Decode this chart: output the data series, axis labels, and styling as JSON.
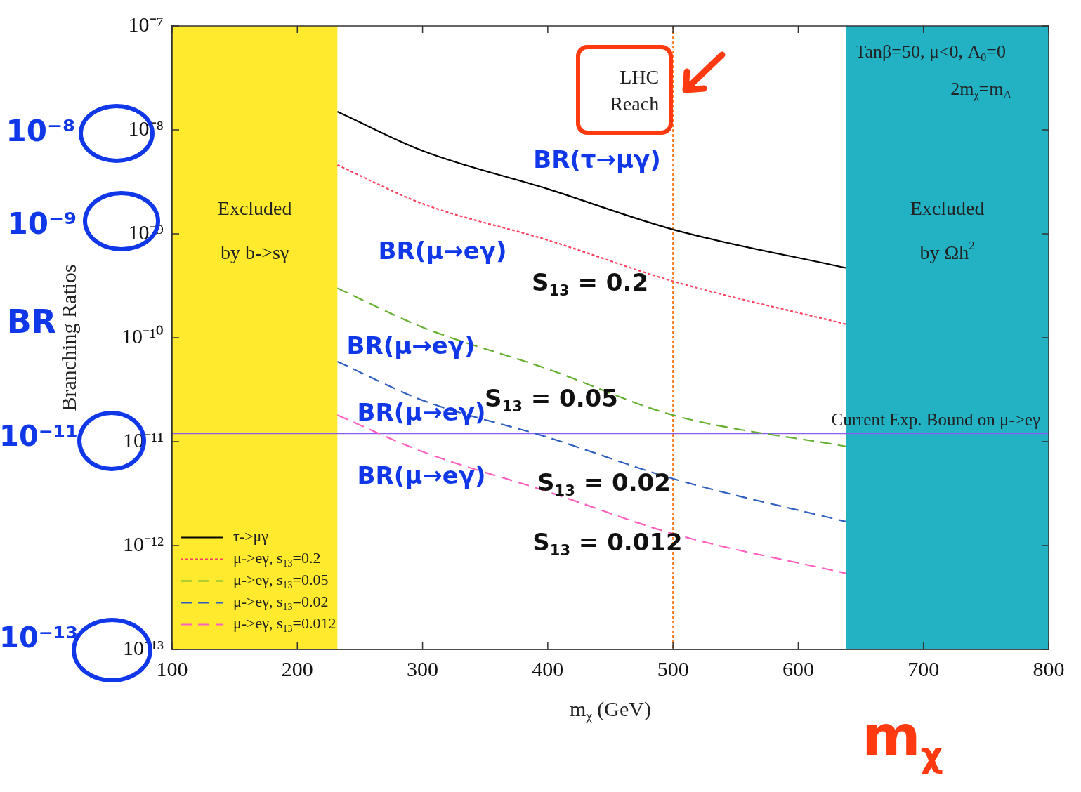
{
  "chart_data": {
    "type": "line",
    "xlabel": "m$_{χ}$ (GeV)",
    "ylabel": "Branching Ratios",
    "xlim": [
      100,
      800
    ],
    "xticks": [
      100,
      200,
      300,
      400,
      500,
      600,
      700,
      800
    ],
    "ylim": [
      1e-13,
      1e-07
    ],
    "yticks": [
      {
        "value": 1e-13,
        "label": "10⁻¹³"
      },
      {
        "value": 1e-12,
        "label": "10⁻¹²"
      },
      {
        "value": 1e-11,
        "label": "10⁻¹¹"
      },
      {
        "value": 1e-10,
        "label": "10⁻¹⁰"
      },
      {
        "value": 1e-09,
        "label": "10⁻⁹"
      },
      {
        "value": 1e-08,
        "label": "10⁻⁸"
      },
      {
        "value": 1e-07,
        "label": "10⁻⁷"
      }
    ],
    "log": "y",
    "legend": "bottom left",
    "marker": "none",
    "series": [
      {
        "name": "τ->μγ",
        "color": "#000000",
        "line_style": "solid",
        "x": [
          232,
          300,
          400,
          500,
          638
        ],
        "values": [
          1.5e-08,
          6.3e-09,
          2.7e-09,
          1.1e-09,
          4.7e-10
        ]
      },
      {
        "name": "μ->eγ, s$_{13}$=0.2",
        "color": "#ff4060",
        "line_style": "dotted",
        "x": [
          232,
          300,
          400,
          500,
          638
        ],
        "values": [
          4.6e-09,
          1.95e-09,
          8.7e-10,
          3.5e-10,
          1.35e-10
        ]
      },
      {
        "name": "μ->eγ, s$_{13}$=0.05",
        "color": "#66b030",
        "line_style": "dashed",
        "x": [
          232,
          300,
          400,
          500,
          638
        ],
        "values": [
          3e-10,
          1.26e-10,
          5e-11,
          1.8e-11,
          9e-12
        ]
      },
      {
        "name": "μ->eγ, s$_{13}$=0.02",
        "color": "#2f5fc0",
        "line_style": "dashed",
        "x": [
          232,
          300,
          400,
          500,
          638
        ],
        "values": [
          5.9e-11,
          2.5e-11,
          1.1e-11,
          4.4e-12,
          1.7e-12
        ]
      },
      {
        "name": "μ->eγ, s$_{13}$=0.012",
        "color": "#ff60c0",
        "line_style": "dashed",
        "x": [
          232,
          300,
          400,
          500,
          638
        ],
        "values": [
          1.8e-11,
          8e-12,
          3.3e-12,
          1.3e-12,
          5.4e-13
        ]
      }
    ],
    "bands": [
      {
        "axis": "x",
        "from": 100,
        "to": 232,
        "label": "Excluded by b->sγ",
        "color": "#ffea2e"
      },
      {
        "axis": "x",
        "from": 638,
        "to": 800,
        "label": "Excluded by Ωh$^{2}$",
        "color": "#22b2c4"
      }
    ],
    "ref_lines": [
      {
        "axis": "x",
        "value": 500,
        "label": "LHC Reach",
        "color": "#ff7a1a",
        "line_style": "dotted"
      },
      {
        "axis": "y",
        "value": 1.2e-11,
        "label": "Current Exp. Bound on μ->eγ",
        "color": "#8a5cf0",
        "line_style": "solid"
      }
    ],
    "annotations": [
      "Tanβ=50, μ<0, A$_{0}$=0",
      "2m$_{χ}$=m$_{A}$",
      "10⁻⁸",
      "10⁻⁹",
      "BR",
      "10⁻¹¹",
      "10⁻¹³",
      "m$_{χ}$",
      "BR(τ→μγ)",
      "BR(μ→eγ)",
      "S$_{13}$ = 0.2",
      "BR(μ→eγ)",
      "S$_{13}$ = 0.05",
      "BR(μ→eγ)",
      "S$_{13}$ = 0.02",
      "BR(μ→eγ)",
      "S$_{13}$ = 0.012"
    ]
  }
}
